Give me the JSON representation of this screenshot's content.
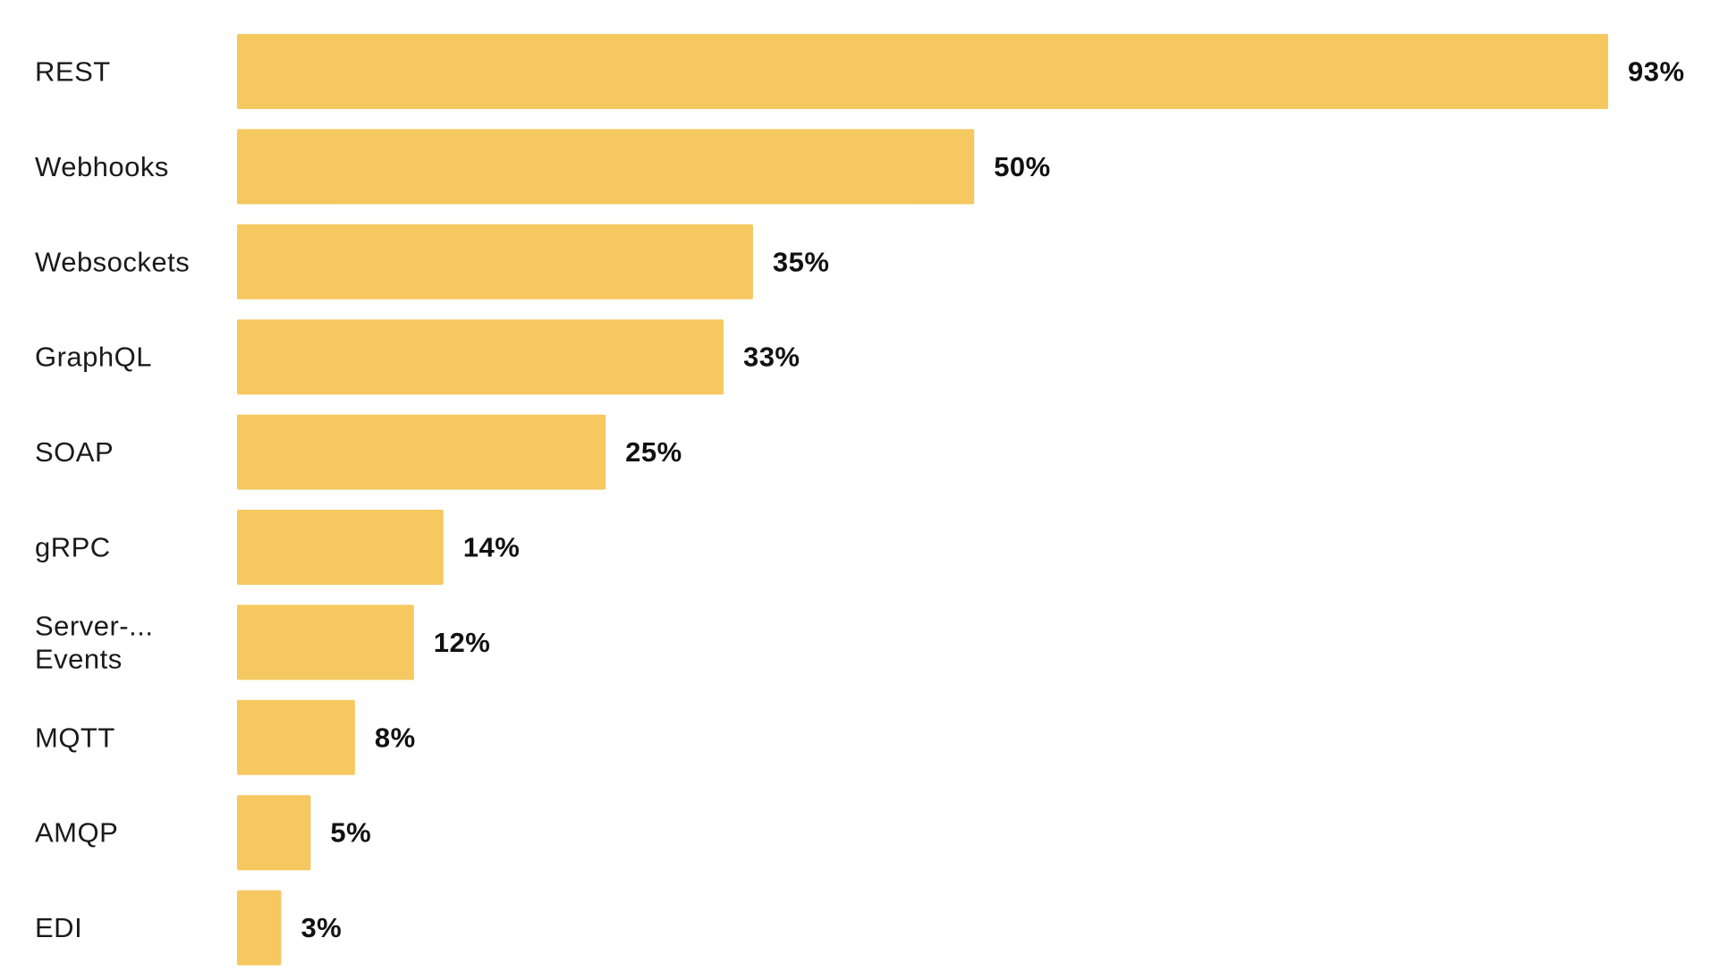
{
  "chart_data": {
    "type": "bar",
    "orientation": "horizontal",
    "categories": [
      "REST",
      "Webhooks",
      "Websockets",
      "GraphQL",
      "SOAP",
      "gRPC",
      "Server-... Events",
      "MQTT",
      "AMQP",
      "EDI"
    ],
    "category_lines": [
      [
        "REST"
      ],
      [
        "Webhooks"
      ],
      [
        "Websockets"
      ],
      [
        "GraphQL"
      ],
      [
        "SOAP"
      ],
      [
        "gRPC"
      ],
      [
        "Server-...",
        "Events"
      ],
      [
        "MQTT"
      ],
      [
        "AMQP"
      ],
      [
        "EDI"
      ]
    ],
    "values": [
      93,
      50,
      35,
      33,
      25,
      14,
      12,
      8,
      5,
      3
    ],
    "value_labels": [
      "93%",
      "50%",
      "35%",
      "33%",
      "25%",
      "14%",
      "12%",
      "8%",
      "5%",
      "3%"
    ],
    "unit": "%",
    "xlim": [
      0,
      100
    ],
    "bar_color": "#F5C860",
    "grid": false,
    "legend": "none",
    "title": "",
    "xlabel": "",
    "ylabel": ""
  }
}
